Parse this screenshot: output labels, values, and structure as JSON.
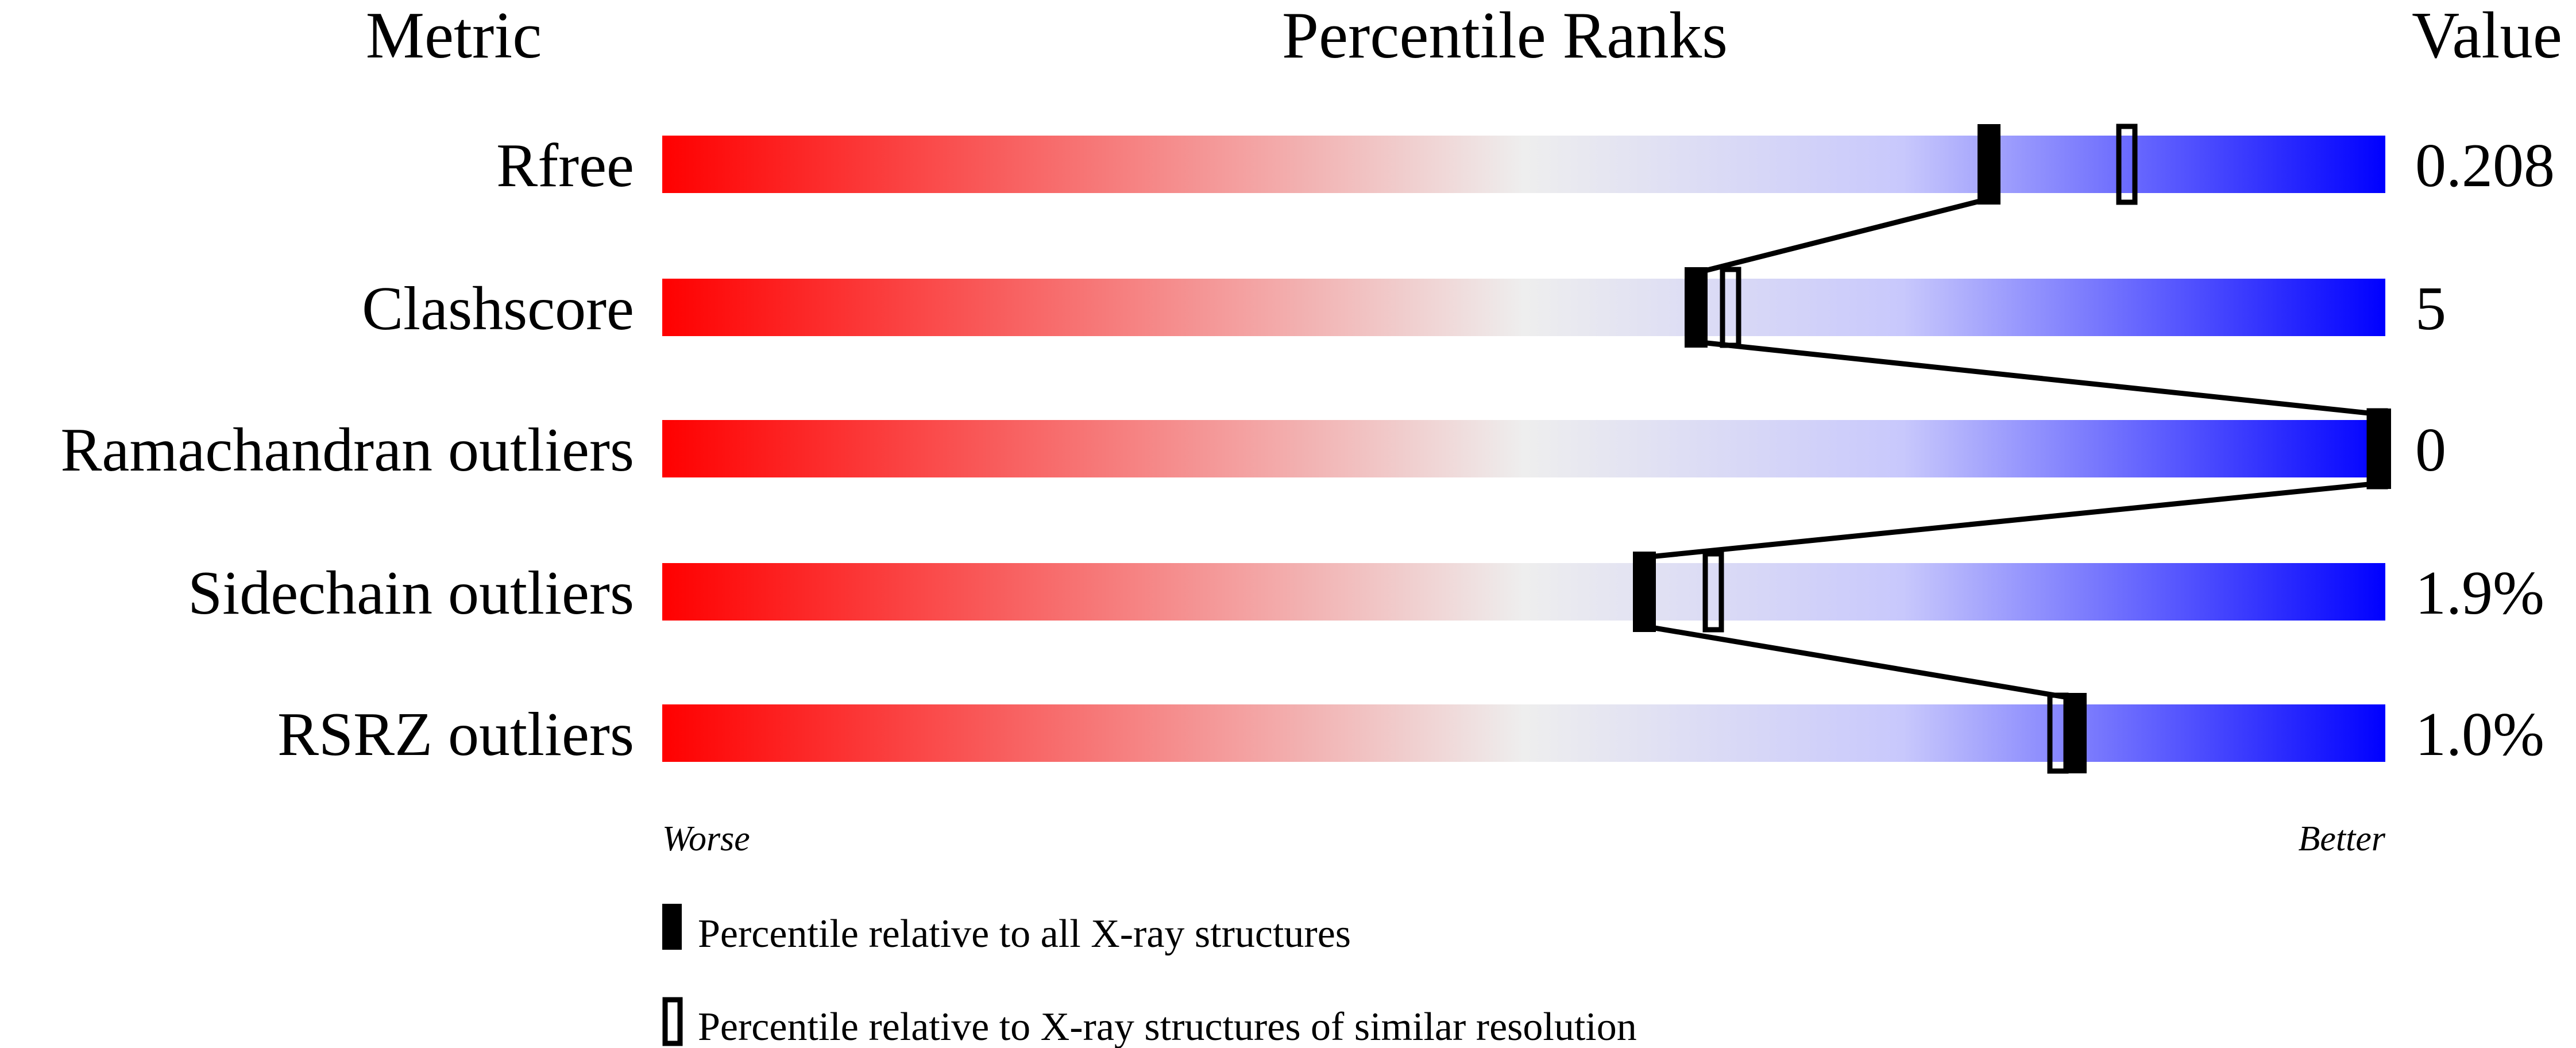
{
  "chart_data": {
    "type": "percentile-bar",
    "headers": {
      "metric": "Metric",
      "ranks": "Percentile Ranks",
      "value": "Value"
    },
    "xlim": [
      0,
      100
    ],
    "axis_labels": {
      "left": "Worse",
      "right": "Better"
    },
    "gradient_colors": [
      "#ff0000",
      "#eeeeee",
      "#0000ff"
    ],
    "rows": [
      {
        "metric": "Rfree",
        "value": "0.208",
        "percentile_all": 77,
        "percentile_similar": 85
      },
      {
        "metric": "Clashscore",
        "value": "5",
        "percentile_all": 60,
        "percentile_similar": 62
      },
      {
        "metric": "Ramachandran outliers",
        "value": "0",
        "percentile_all": 100,
        "percentile_similar": 100
      },
      {
        "metric": "Sidechain outliers",
        "value": "1.9%",
        "percentile_all": 57,
        "percentile_similar": 61
      },
      {
        "metric": "RSRZ outliers",
        "value": "1.0%",
        "percentile_all": 82,
        "percentile_similar": 81
      }
    ],
    "legend": [
      {
        "marker": "filled",
        "label": "Percentile relative to all X-ray structures"
      },
      {
        "marker": "open",
        "label": "Percentile relative to X-ray structures of similar resolution"
      }
    ]
  }
}
